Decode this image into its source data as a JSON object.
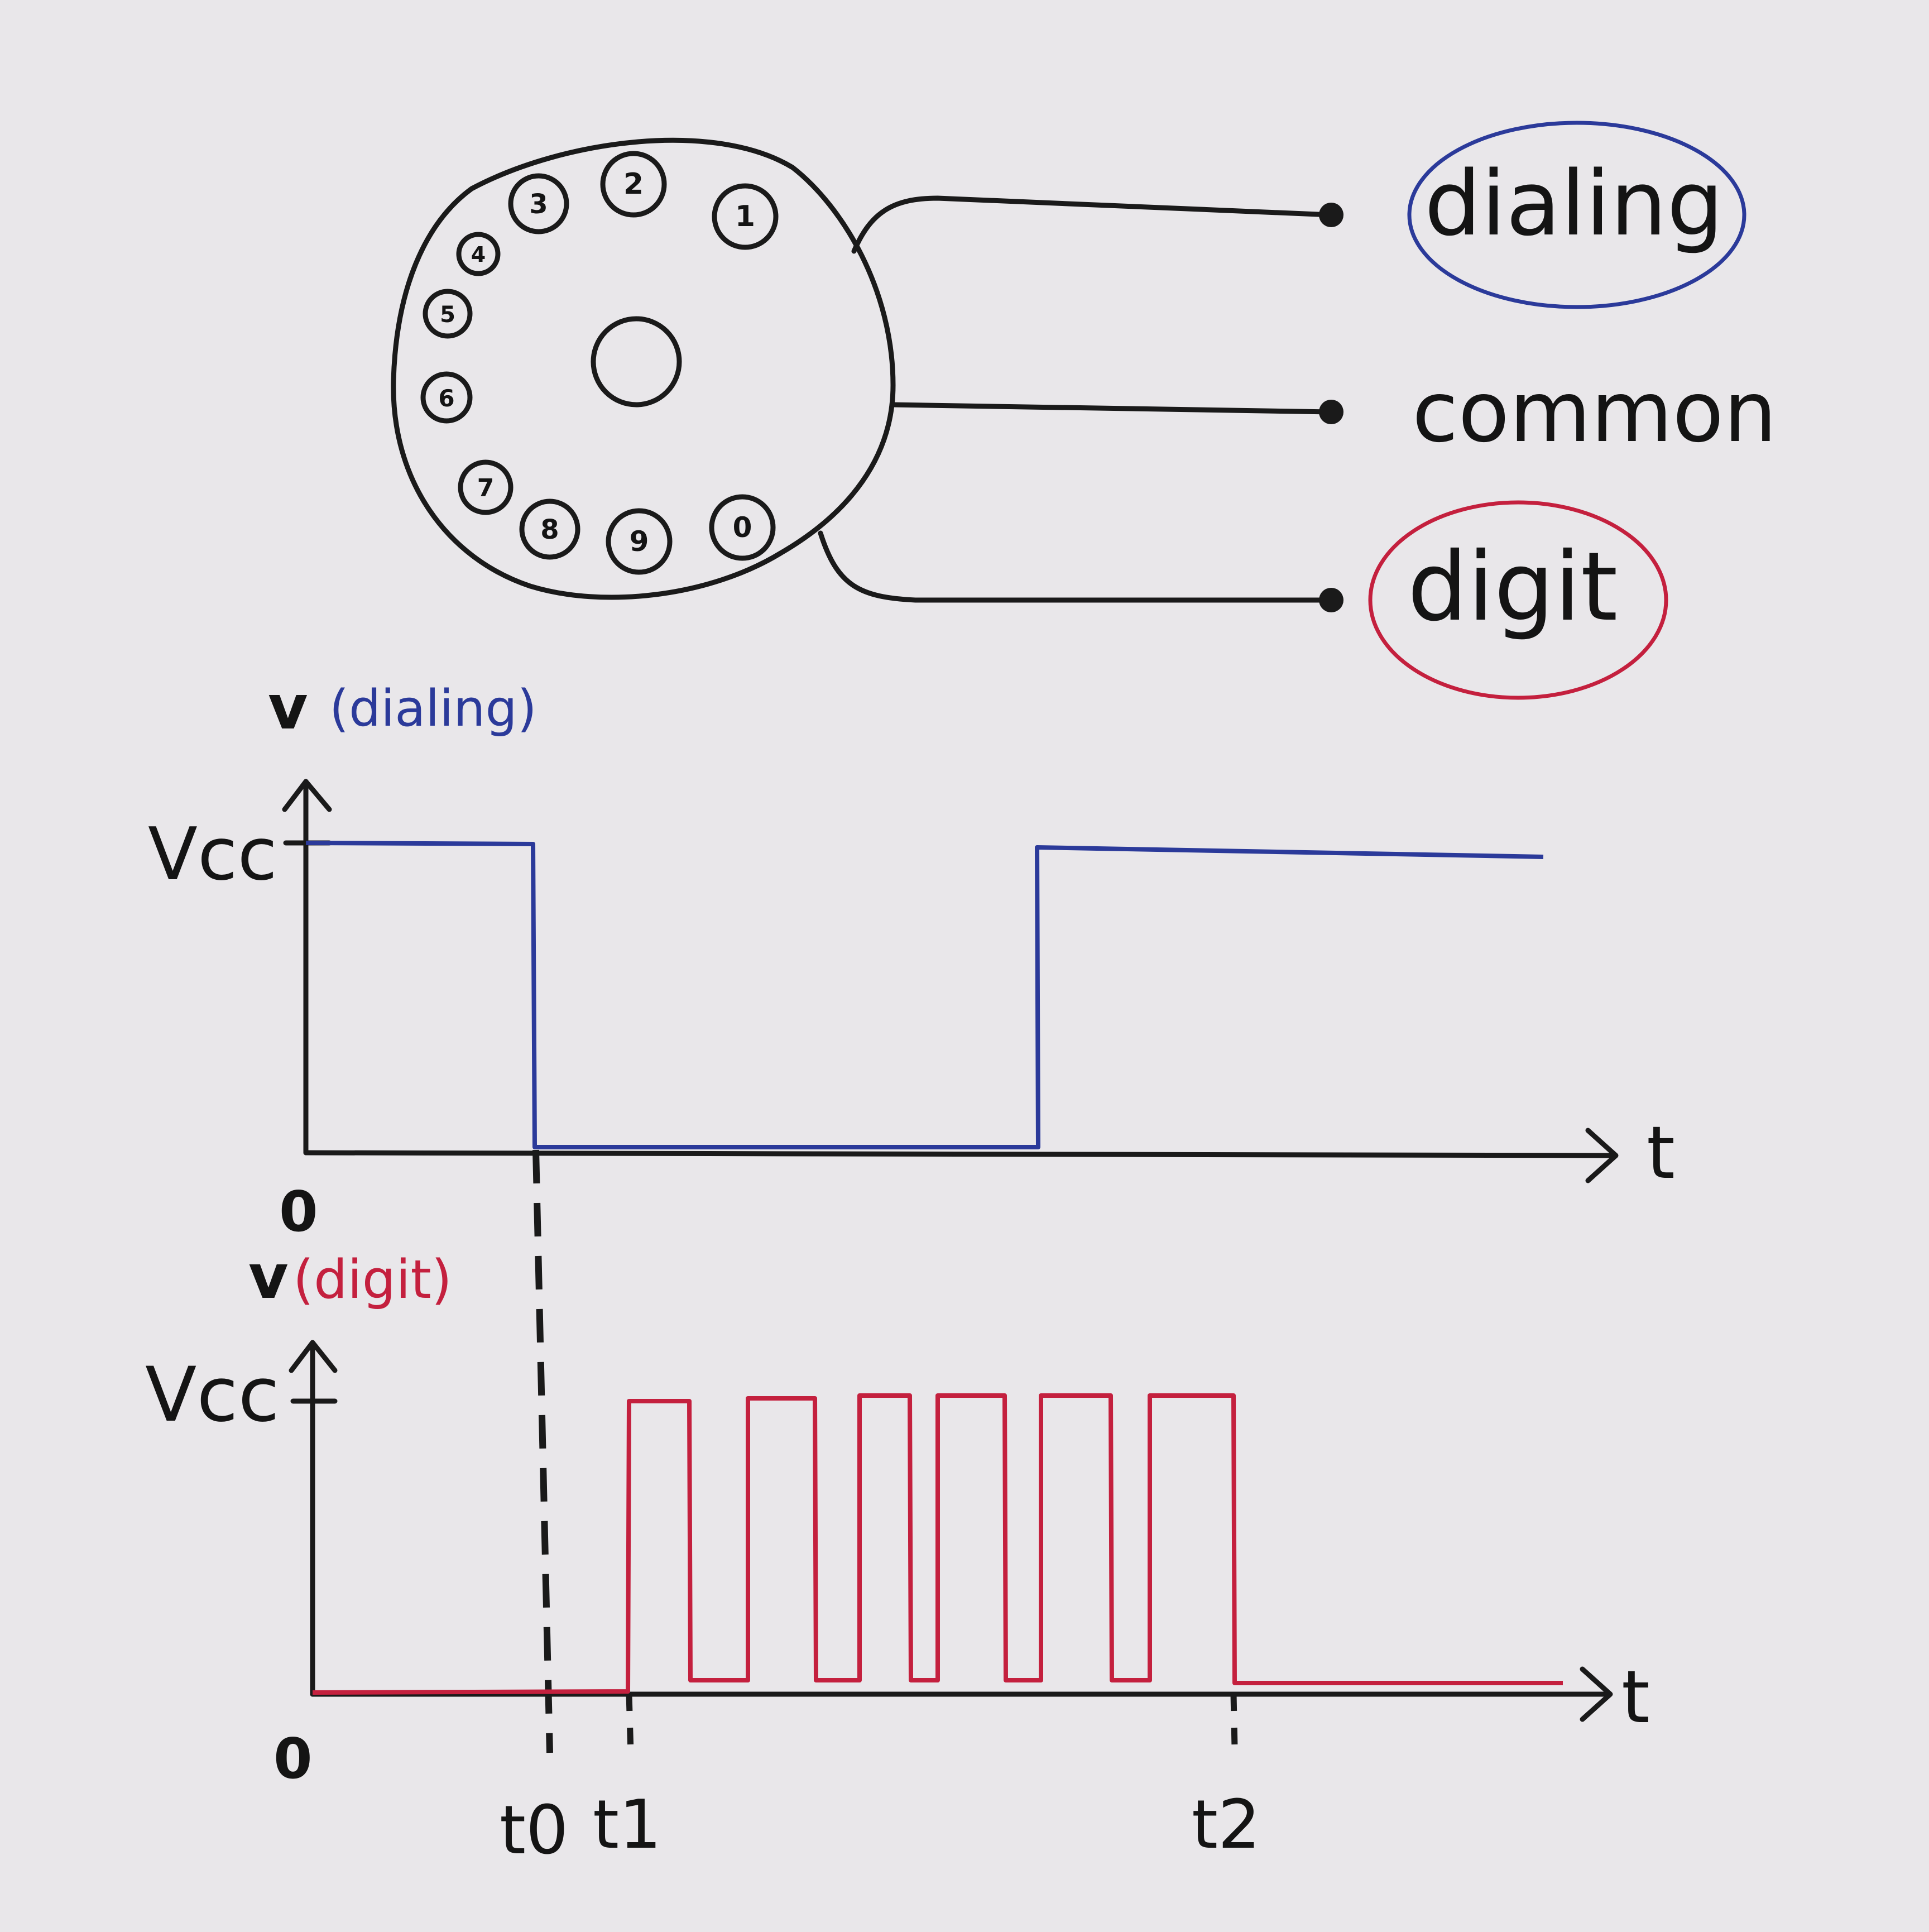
{
  "dial": {
    "holes": [
      "1",
      "2",
      "3",
      "4",
      "5",
      "6",
      "7",
      "8",
      "9",
      "0"
    ]
  },
  "terminals": {
    "dialing": "dialing",
    "common": "common",
    "digit": "digit"
  },
  "graph_dialing": {
    "label_v": "v",
    "label_paren": "(dialing)",
    "vcc": "Vcc",
    "origin": "0",
    "t_axis": "t"
  },
  "graph_digit": {
    "label_v": "v",
    "label_paren": "(digit)",
    "vcc": "Vcc",
    "origin": "0",
    "t_axis": "t"
  },
  "time_marks": {
    "t0": "t0",
    "t1": "t1",
    "t2": "t2"
  },
  "colors": {
    "ink": "#1a1a1a",
    "dialing": "#2b3a9a",
    "digit": "#c4203e",
    "paper": "#e9e7ea"
  }
}
